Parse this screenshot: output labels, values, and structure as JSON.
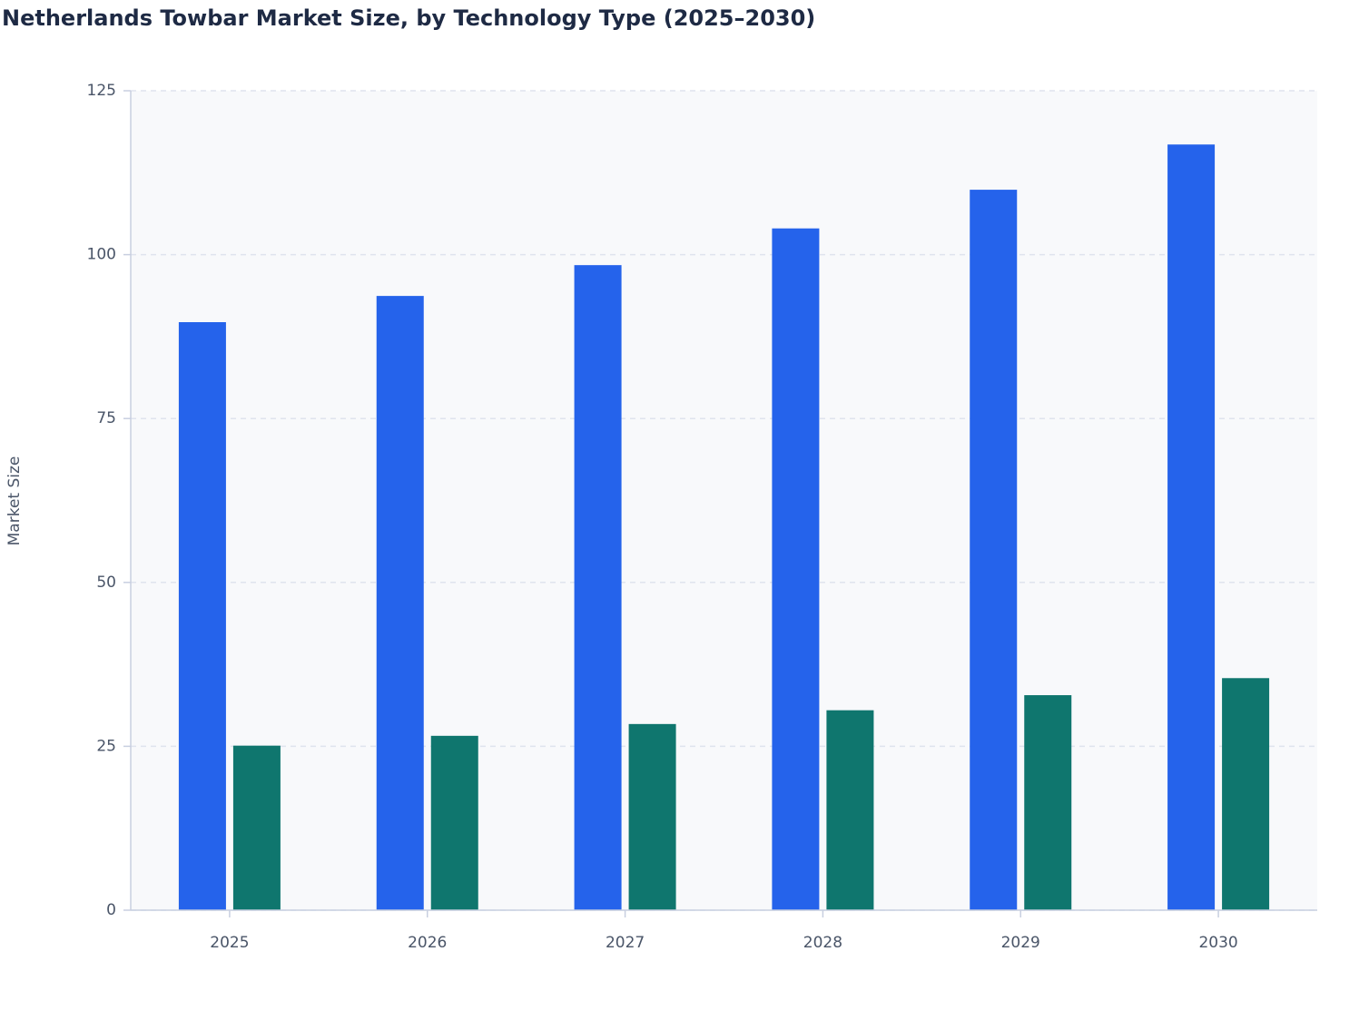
{
  "chart_data": {
    "type": "bar",
    "title": "Netherlands Towbar Market Size, by Technology Type (2025–2030)",
    "y_label": "Market Size",
    "categories": [
      "2025",
      "2026",
      "2027",
      "2028",
      "2029",
      "2030"
    ],
    "series": [
      {
        "color": "#2563eb",
        "values": [
          89.7,
          93.7,
          98.4,
          104.0,
          109.9,
          116.8
        ]
      },
      {
        "color": "#0f766e",
        "values": [
          25.1,
          26.6,
          28.4,
          30.5,
          32.8,
          35.4
        ]
      }
    ],
    "ylim": [
      0,
      125
    ],
    "yticks": [
      0,
      25,
      50,
      75,
      100,
      125
    ],
    "grid": true
  }
}
